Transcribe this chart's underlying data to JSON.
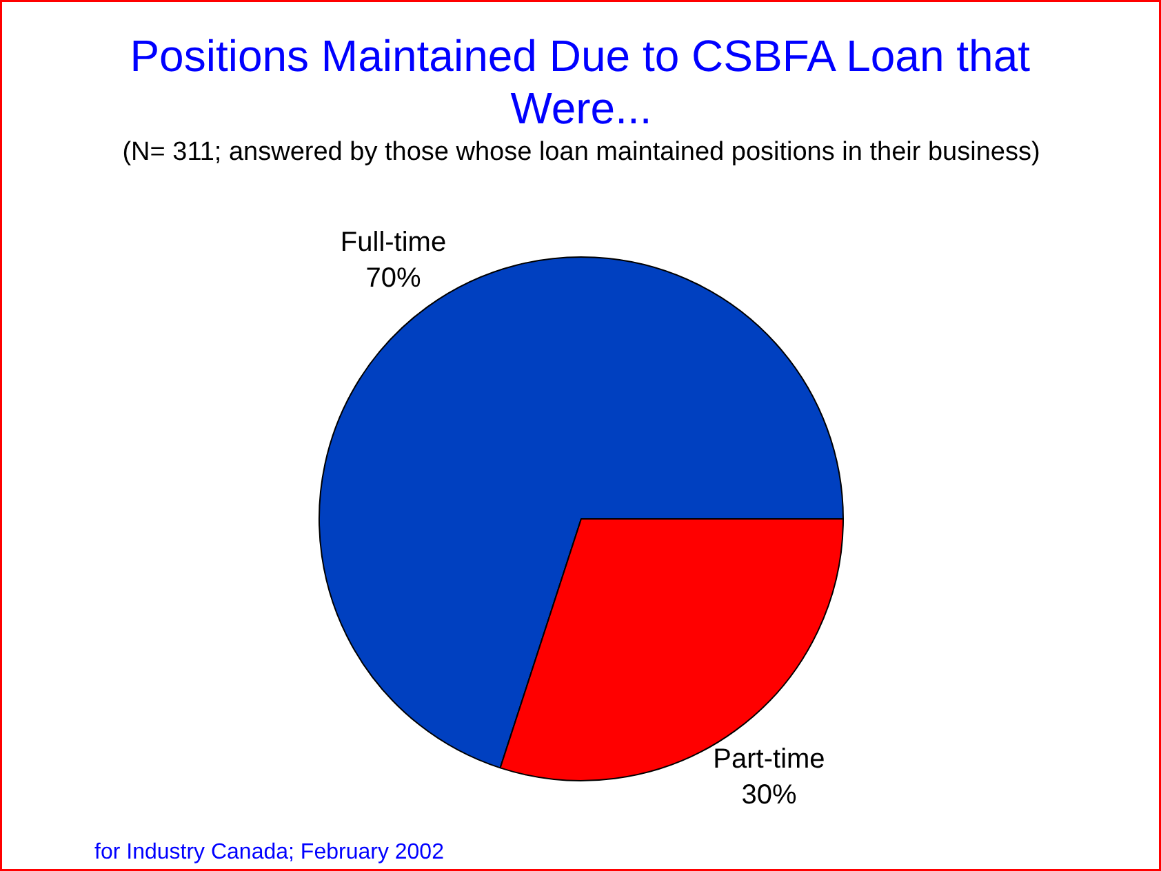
{
  "chart_data": {
    "type": "pie",
    "title": "Positions Maintained Due to CSBFA Loan that Were...",
    "subtitle": "(N= 311; answered by those whose loan maintained positions in their business)",
    "categories": [
      "Full-time",
      "Part-time"
    ],
    "values": [
      70,
      30
    ],
    "colors": [
      "#0040c0",
      "#ff0000"
    ],
    "value_labels": [
      "70%",
      "30%"
    ],
    "legend": false,
    "annotations": [
      "for Industry Canada; February 2002"
    ]
  }
}
